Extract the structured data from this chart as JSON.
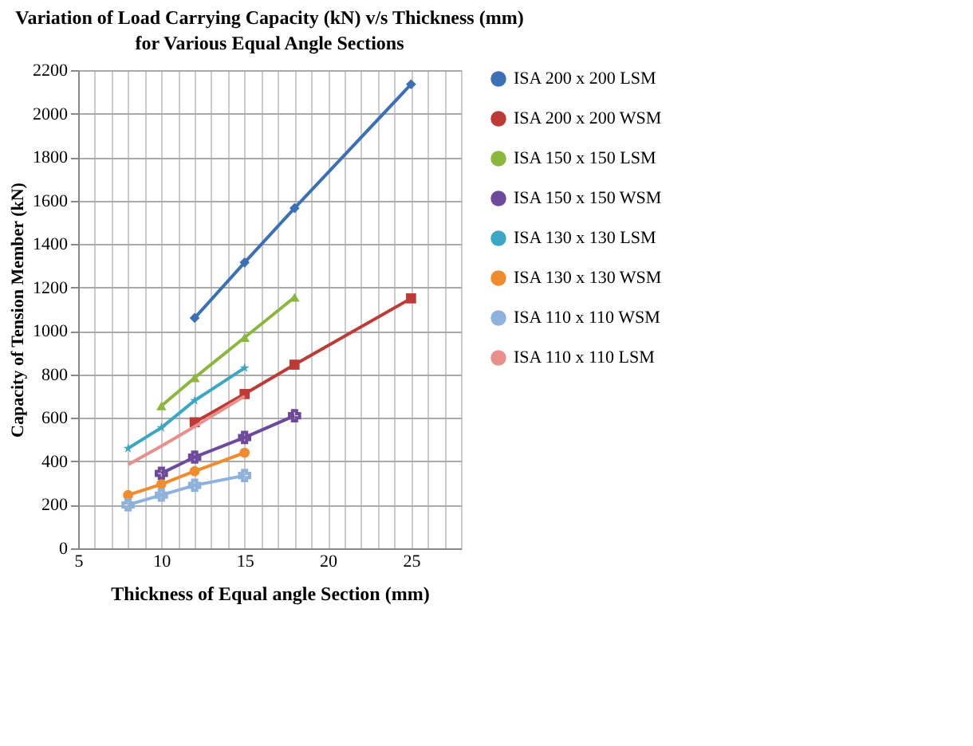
{
  "chart_data": {
    "type": "line",
    "title": "Variation of Load Carrying Capacity (kN) v/s Thickness (mm) for Various Equal Angle Sections",
    "xlabel": "Thickness of Equal angle Section (mm)",
    "ylabel": "Capacity of Tension Member (kN)",
    "xlim": [
      5,
      28
    ],
    "ylim": [
      0,
      2200
    ],
    "xticks": [
      5,
      {
        "value": 6,
        "label": null
      },
      {
        "value": 7,
        "label": null
      },
      {
        "value": 8,
        "label": null
      },
      {
        "value": 9,
        "label": null
      },
      10,
      {
        "value": 11,
        "label": null
      },
      {
        "value": 12,
        "label": null
      },
      {
        "value": 13,
        "label": null
      },
      {
        "value": 14,
        "label": null
      },
      15,
      {
        "value": 16,
        "label": null
      },
      {
        "value": 17,
        "label": null
      },
      {
        "value": 18,
        "label": null
      },
      {
        "value": 19,
        "label": null
      },
      20,
      {
        "value": 21,
        "label": null
      },
      {
        "value": 22,
        "label": null
      },
      {
        "value": 23,
        "label": null
      },
      {
        "value": 24,
        "label": null
      },
      25,
      {
        "value": 26,
        "label": null
      },
      {
        "value": 27,
        "label": null
      },
      {
        "value": 28,
        "label": null
      }
    ],
    "yticks": [
      0,
      200,
      400,
      600,
      800,
      1000,
      1200,
      1400,
      1600,
      1800,
      2000,
      2200
    ],
    "grid": true,
    "legend": "right",
    "series": [
      {
        "name": "ISA 200 x 200 LSM",
        "color": "#3b6fb6",
        "marker": "diamond",
        "x": [
          12,
          15,
          18,
          25
        ],
        "values": [
          1060,
          1315,
          1565,
          2135
        ]
      },
      {
        "name": "ISA 200 x 200 WSM",
        "color": "#be3a36",
        "marker": "square",
        "x": [
          12,
          15,
          18,
          25
        ],
        "values": [
          580,
          710,
          845,
          1150
        ]
      },
      {
        "name": "ISA 150 x 150 LSM",
        "color": "#8cb73e",
        "marker": "triangle",
        "x": [
          10,
          12,
          15,
          18
        ],
        "values": [
          655,
          785,
          970,
          1155
        ]
      },
      {
        "name": "ISA 150 x 150 WSM",
        "color": "#6d4a9b",
        "marker": "cross",
        "x": [
          10,
          12,
          15,
          18
        ],
        "values": [
          345,
          420,
          510,
          610
        ]
      },
      {
        "name": "ISA 130 x 130 LSM",
        "color": "#3ba7c4",
        "marker": "star",
        "x": [
          8,
          10,
          12,
          15
        ],
        "values": [
          460,
          555,
          680,
          830
        ]
      },
      {
        "name": "ISA 130 x 130 WSM",
        "color": "#f08c2e",
        "marker": "circle",
        "x": [
          8,
          10,
          12,
          15
        ],
        "values": [
          245,
          295,
          355,
          440
        ]
      },
      {
        "name": "ISA 110 x 110 WSM",
        "color": "#8eb2dc",
        "marker": "cross",
        "x": [
          8,
          10,
          12,
          15
        ],
        "values": [
          200,
          245,
          290,
          335
        ]
      },
      {
        "name": "ISA 110 x 110 LSM",
        "color": "#e8908c",
        "marker": "none",
        "x": [
          8,
          10,
          12,
          15
        ],
        "values": [
          385,
          470,
          560,
          700
        ]
      }
    ]
  }
}
